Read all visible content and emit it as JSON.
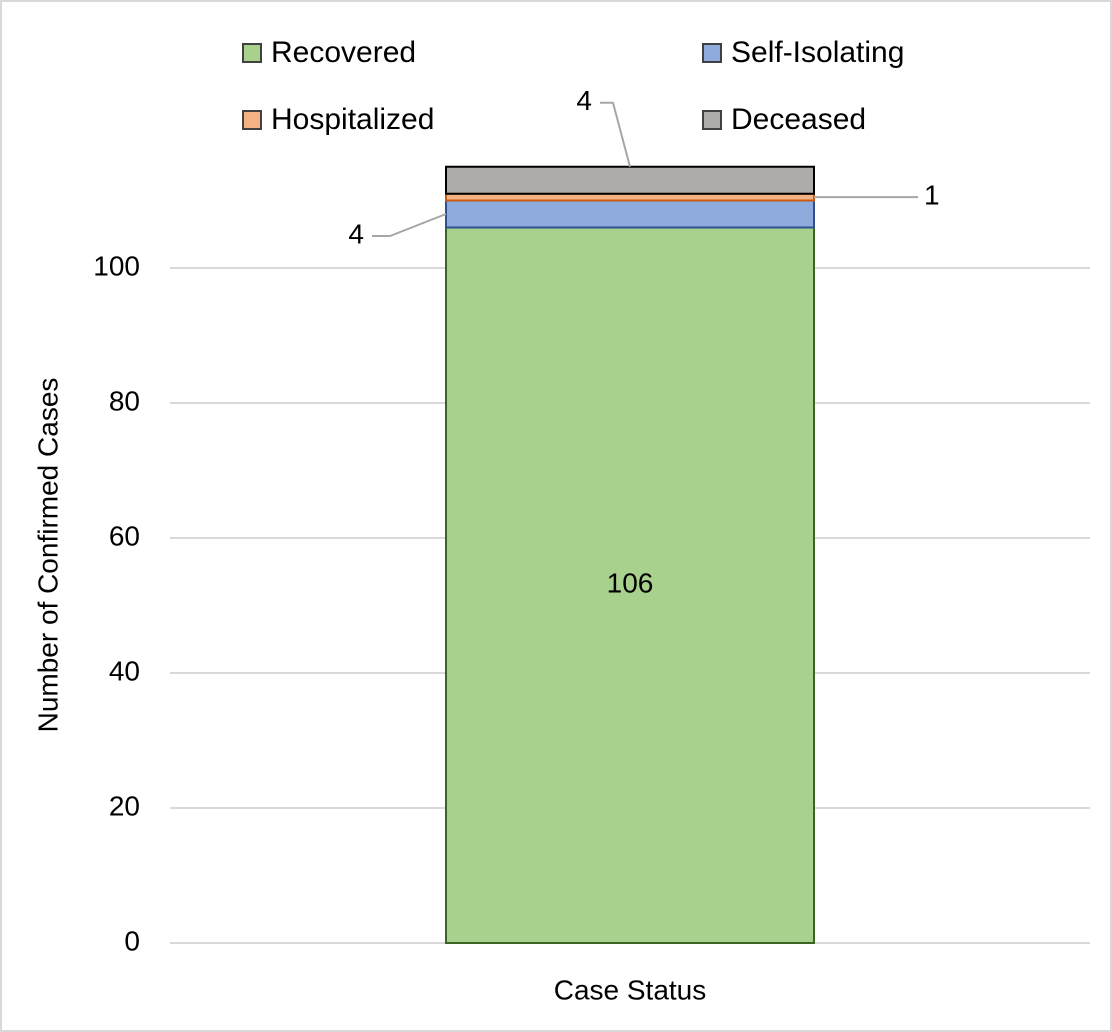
{
  "chart_data": {
    "type": "stacked_bar",
    "y_label": "Number of Confirmed Cases",
    "categories": [
      "Case Status"
    ],
    "series": [
      {
        "name": "Recovered",
        "color": "#a9d18e",
        "values": [
          106
        ]
      },
      {
        "name": "Self-Isolating",
        "color": "#8faadc",
        "values": [
          4
        ]
      },
      {
        "name": "Hospitalized",
        "color": "#f4b183",
        "values": [
          1
        ]
      },
      {
        "name": "Deceased",
        "color": "#afabab",
        "values": [
          4
        ]
      }
    ],
    "ylim": [
      0,
      120
    ],
    "yticks": [
      0,
      20,
      40,
      60,
      80,
      100
    ],
    "grid": true,
    "legend": "top"
  }
}
